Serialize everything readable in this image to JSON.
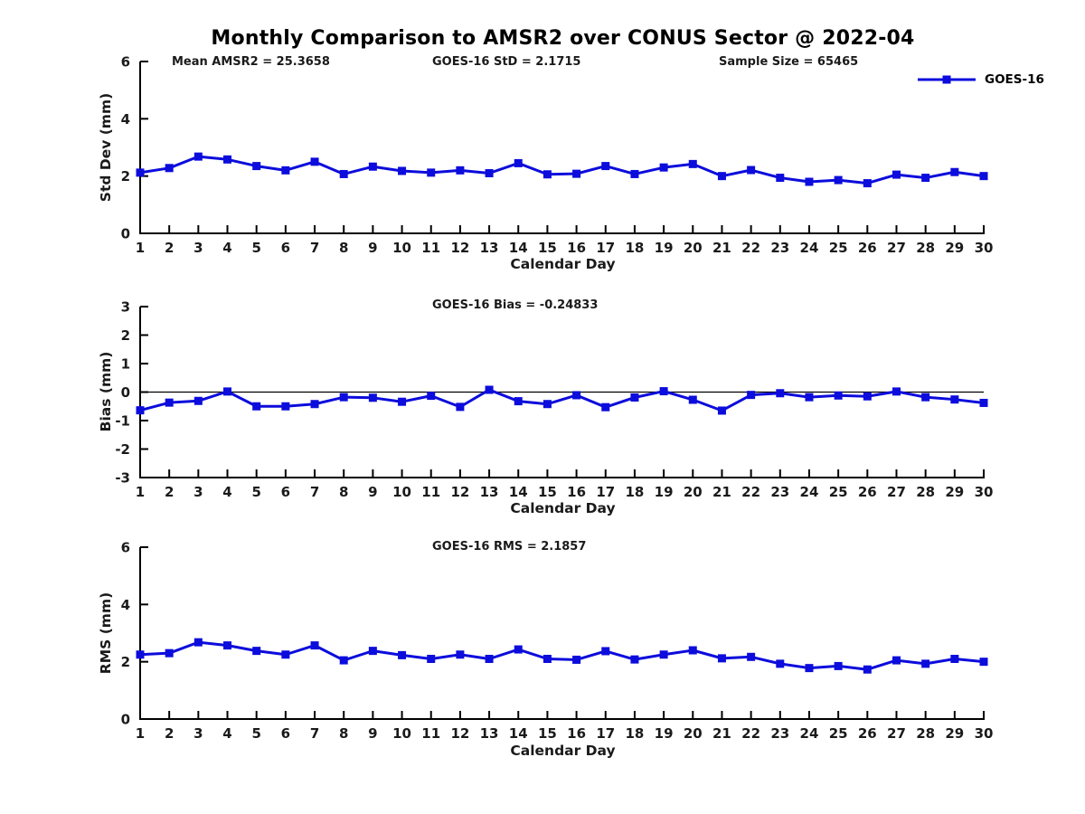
{
  "figure": {
    "title": "Monthly Comparison to AMSR2 over CONUS Sector @ 2022-04",
    "accent_color": "#0C0CDC",
    "axis_color": "#000000"
  },
  "legend": {
    "label": "GOES-16"
  },
  "chart_data": [
    {
      "type": "line",
      "xlabel": "Calendar Day",
      "ylabel": "Std Dev (mm)",
      "annotations": [
        {
          "text": "Mean AMSR2 = 25.3658"
        },
        {
          "text": "GOES-16 StD = 2.1715"
        },
        {
          "text": "Sample Size = 65465"
        }
      ],
      "x": [
        1,
        2,
        3,
        4,
        5,
        6,
        7,
        8,
        9,
        10,
        11,
        12,
        13,
        14,
        15,
        16,
        17,
        18,
        19,
        20,
        21,
        22,
        23,
        24,
        25,
        26,
        27,
        28,
        29,
        30
      ],
      "series": [
        {
          "name": "GOES-16",
          "color": "#0C0CDC",
          "values": [
            2.12,
            2.28,
            2.68,
            2.58,
            2.35,
            2.2,
            2.5,
            2.07,
            2.33,
            2.18,
            2.12,
            2.2,
            2.1,
            2.45,
            2.06,
            2.08,
            2.35,
            2.07,
            2.3,
            2.42,
            2.0,
            2.21,
            1.94,
            1.8,
            1.86,
            1.75,
            2.05,
            1.94,
            2.14,
            2.0
          ]
        }
      ],
      "xlim": [
        1,
        30
      ],
      "ylim": [
        0,
        6
      ],
      "yticks": [
        0,
        2,
        4,
        6
      ],
      "grid": false,
      "zero_line": false,
      "legend_position": "top-right-outside"
    },
    {
      "type": "line",
      "xlabel": "Calendar Day",
      "ylabel": "Bias (mm)",
      "annotations": [
        {
          "text": "GOES-16 Bias = -0.24833"
        }
      ],
      "x": [
        1,
        2,
        3,
        4,
        5,
        6,
        7,
        8,
        9,
        10,
        11,
        12,
        13,
        14,
        15,
        16,
        17,
        18,
        19,
        20,
        21,
        22,
        23,
        24,
        25,
        26,
        27,
        28,
        29,
        30
      ],
      "series": [
        {
          "name": "GOES-16",
          "color": "#0C0CDC",
          "values": [
            -0.64,
            -0.37,
            -0.31,
            0.02,
            -0.5,
            -0.5,
            -0.42,
            -0.18,
            -0.2,
            -0.34,
            -0.13,
            -0.52,
            0.08,
            -0.32,
            -0.42,
            -0.11,
            -0.53,
            -0.19,
            0.03,
            -0.27,
            -0.65,
            -0.1,
            -0.04,
            -0.18,
            -0.12,
            -0.15,
            0.02,
            -0.18,
            -0.26,
            -0.38
          ]
        }
      ],
      "xlim": [
        1,
        30
      ],
      "ylim": [
        -3,
        3
      ],
      "yticks": [
        -3,
        -2,
        -1,
        0,
        1,
        2,
        3
      ],
      "grid": false,
      "zero_line": true,
      "legend_position": "none"
    },
    {
      "type": "line",
      "xlabel": "Calendar Day",
      "ylabel": "RMS (mm)",
      "annotations": [
        {
          "text": "GOES-16 RMS = 2.1857"
        }
      ],
      "x": [
        1,
        2,
        3,
        4,
        5,
        6,
        7,
        8,
        9,
        10,
        11,
        12,
        13,
        14,
        15,
        16,
        17,
        18,
        19,
        20,
        21,
        22,
        23,
        24,
        25,
        26,
        27,
        28,
        29,
        30
      ],
      "series": [
        {
          "name": "GOES-16",
          "color": "#0C0CDC",
          "values": [
            2.25,
            2.3,
            2.68,
            2.57,
            2.38,
            2.25,
            2.57,
            2.05,
            2.38,
            2.23,
            2.1,
            2.25,
            2.1,
            2.43,
            2.1,
            2.07,
            2.37,
            2.08,
            2.25,
            2.4,
            2.12,
            2.17,
            1.93,
            1.78,
            1.85,
            1.73,
            2.05,
            1.93,
            2.1,
            2.0
          ]
        }
      ],
      "xlim": [
        1,
        30
      ],
      "ylim": [
        0,
        6
      ],
      "yticks": [
        0,
        2,
        4,
        6
      ],
      "grid": false,
      "zero_line": false,
      "legend_position": "none"
    }
  ]
}
